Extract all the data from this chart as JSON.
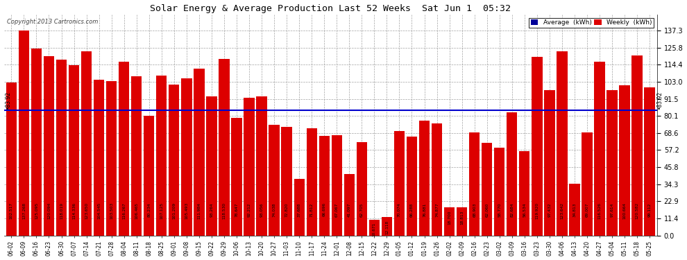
{
  "title": "Solar Energy & Average Production Last 52 Weeks  Sat Jun 1  05:32",
  "copyright": "Copyright 2013 Cartronics.com",
  "average_value": 83.92,
  "bar_color": "#DD0000",
  "average_line_color": "#0000CC",
  "legend_avg_color": "#000099",
  "legend_weekly_color": "#DD0000",
  "background_color": "#FFFFFF",
  "plot_background_color": "#FFFFFF",
  "grid_color": "#999999",
  "ylim": [
    0,
    148
  ],
  "yticks": [
    0.0,
    11.4,
    22.9,
    34.3,
    45.8,
    57.2,
    68.6,
    80.1,
    91.5,
    103.0,
    114.4,
    125.8,
    137.3
  ],
  "categories": [
    "06-02",
    "06-09",
    "06-16",
    "06-23",
    "06-30",
    "07-07",
    "07-14",
    "07-21",
    "07-28",
    "08-04",
    "08-11",
    "08-18",
    "08-25",
    "09-01",
    "09-08",
    "09-15",
    "09-22",
    "09-29",
    "10-06",
    "10-13",
    "10-20",
    "10-27",
    "11-03",
    "11-10",
    "11-17",
    "11-24",
    "12-01",
    "12-08",
    "12-15",
    "12-22",
    "12-29",
    "01-05",
    "01-12",
    "01-19",
    "01-26",
    "02-02",
    "02-09",
    "02-16",
    "02-23",
    "03-02",
    "03-09",
    "03-16",
    "03-23",
    "03-30",
    "04-06",
    "04-13",
    "04-20",
    "04-27",
    "05-04",
    "05-11",
    "05-18",
    "05-25"
  ],
  "values": [
    102.517,
    137.268,
    125.095,
    120.094,
    118.019,
    114.336,
    123.65,
    104.545,
    103.503,
    116.267,
    106.465,
    80.234,
    107.125,
    101.209,
    105.493,
    111.984,
    93.264,
    118.53,
    78.647,
    92.212,
    93.056,
    74.038,
    72.82,
    37.688,
    71.812,
    66.696,
    67.067,
    41.097,
    62.705,
    10.671,
    12.118,
    70.074,
    66.288,
    76.881,
    74.877,
    18.7,
    18.813,
    68.903,
    62.06,
    58.77,
    82.684,
    56.534,
    119.92,
    97.432,
    123.642,
    34.813,
    69.007,
    116.526,
    97.614,
    100.664,
    120.582,
    99.112
  ]
}
